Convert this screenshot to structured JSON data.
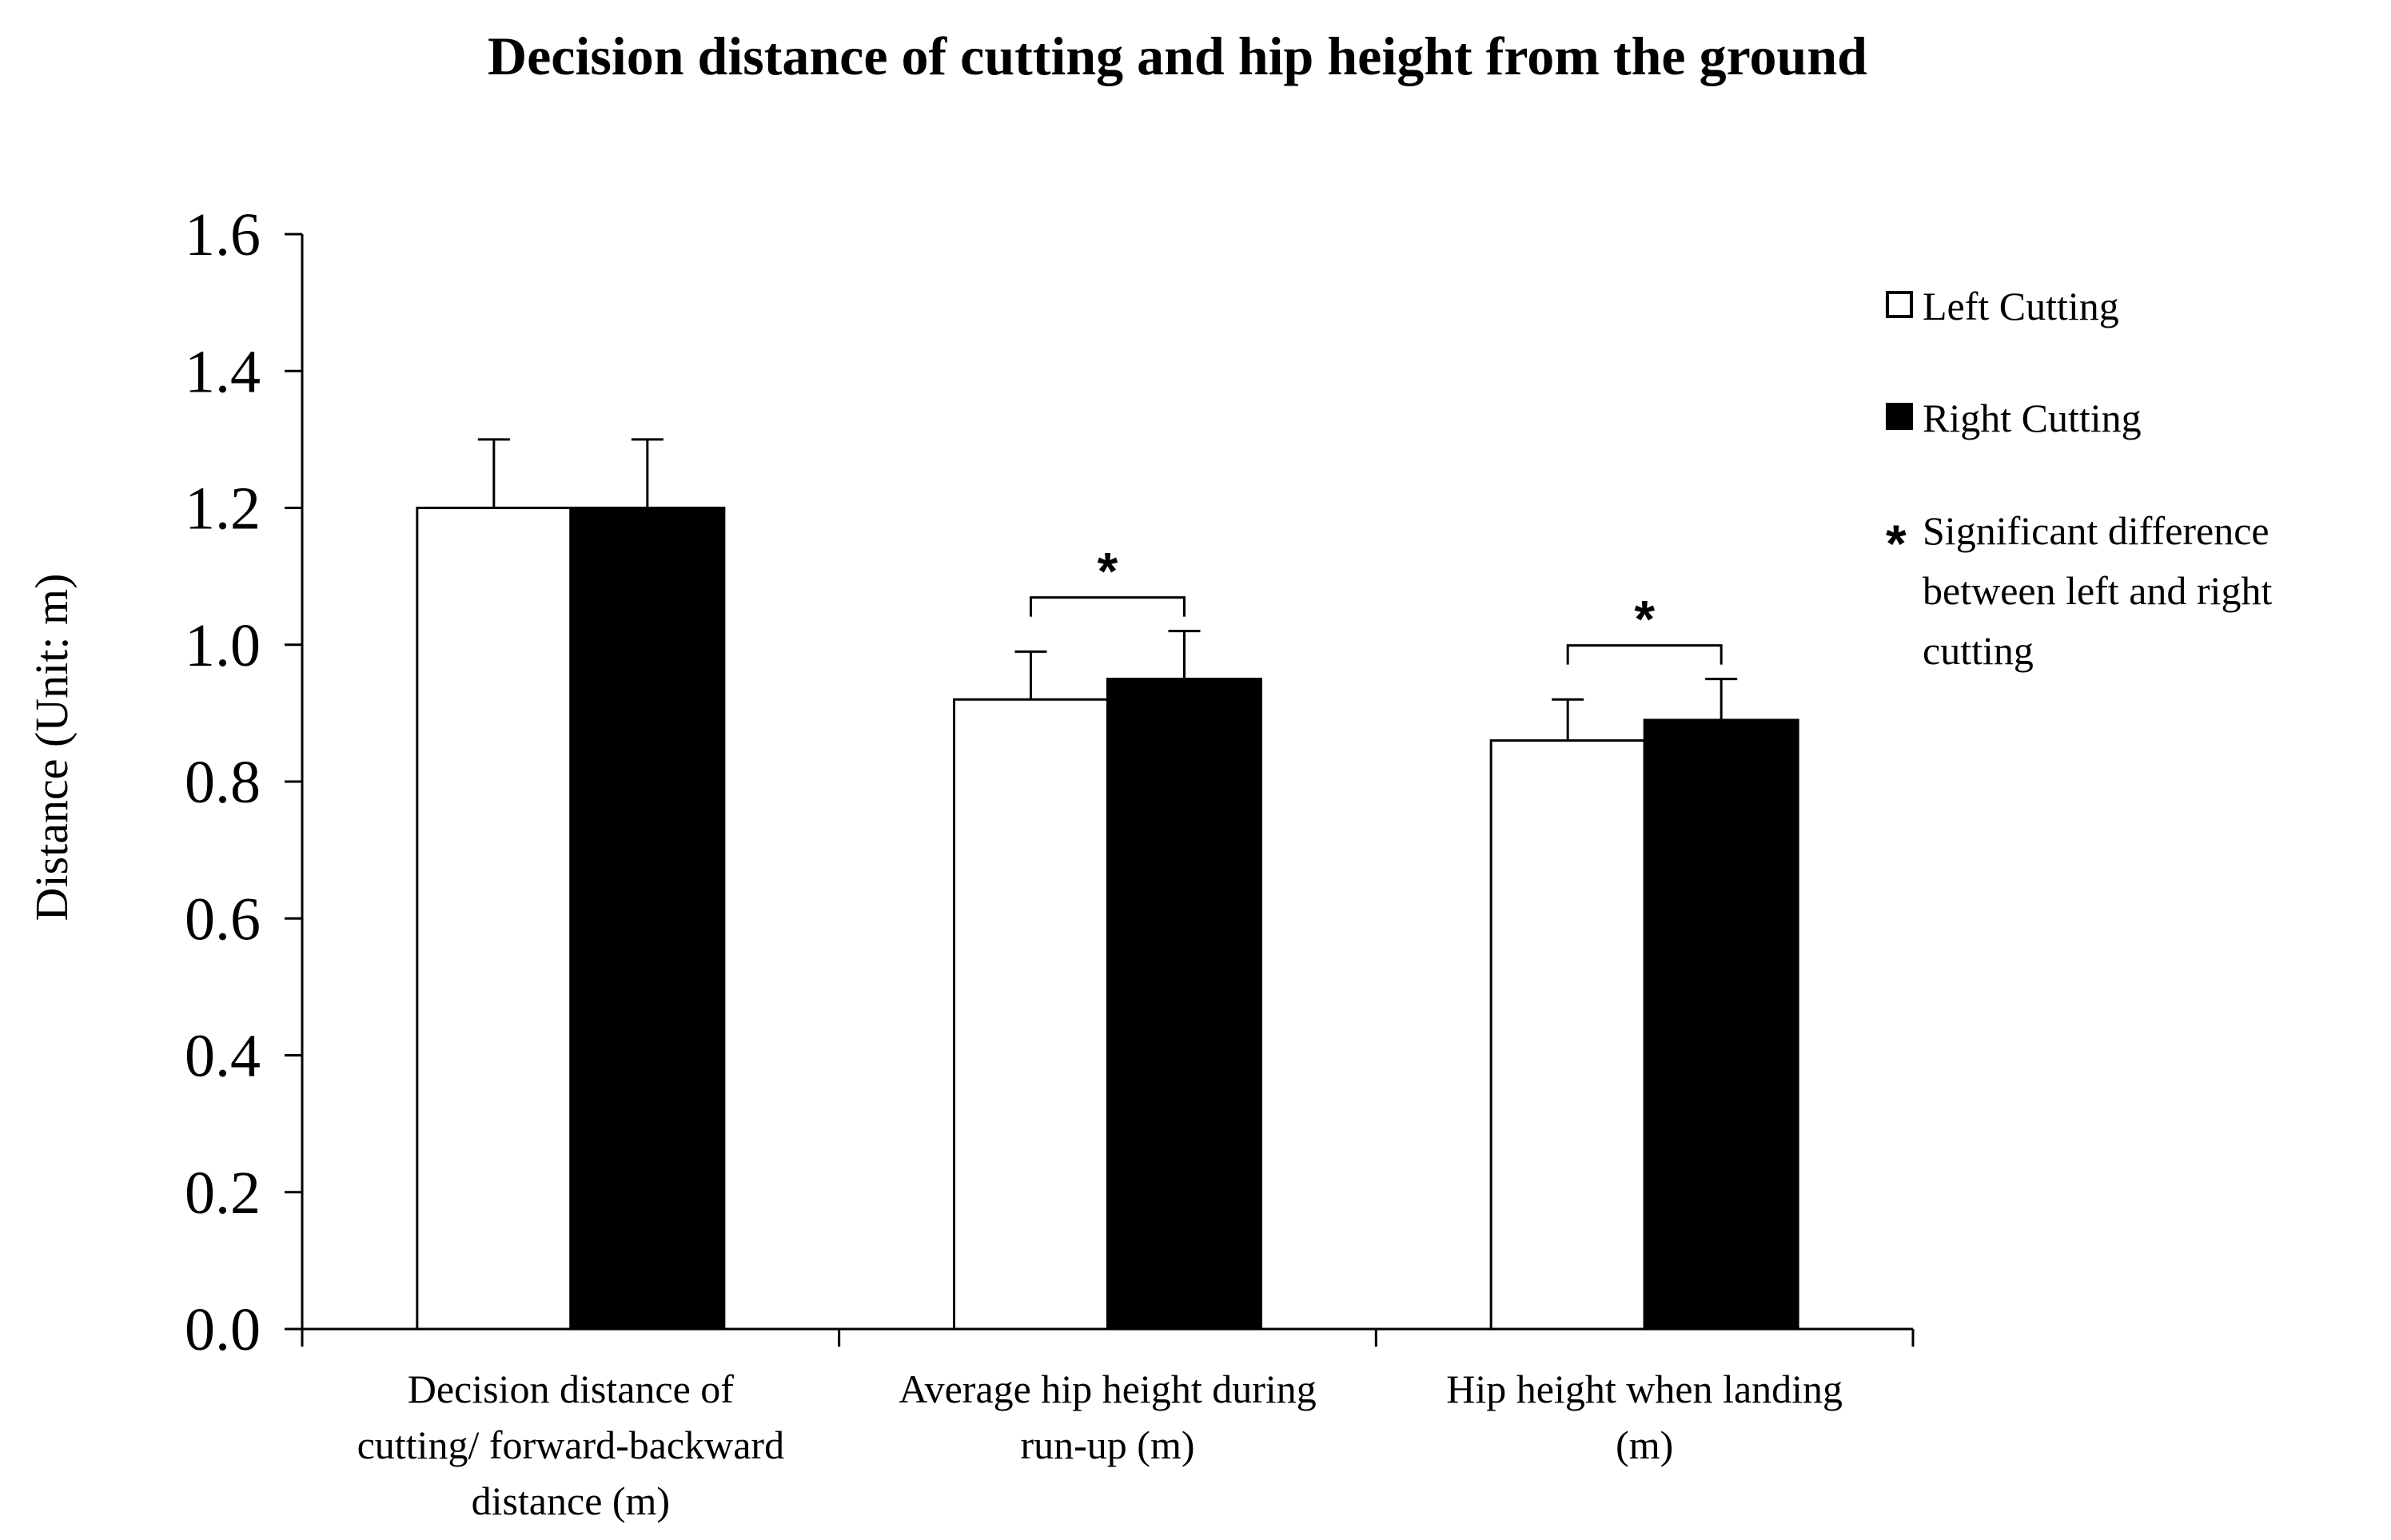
{
  "chart_data": {
    "type": "bar",
    "title": "Decision distance of cutting and hip height from the ground",
    "xlabel": "",
    "ylabel": "Distance (Unit: m)",
    "ylim": [
      0,
      1.6
    ],
    "yticks": [
      "0.0",
      "0.2",
      "0.4",
      "0.6",
      "0.8",
      "1.0",
      "1.2",
      "1.4",
      "1.6"
    ],
    "categories": [
      [
        "Decision distance of",
        "cutting/ forward-backward",
        "distance  (m)"
      ],
      [
        "Average hip height during",
        "run-up (m)"
      ],
      [
        "Hip height when landing",
        "(m)"
      ]
    ],
    "series": [
      {
        "name": "Left Cutting",
        "color": "#ffffff",
        "values": [
          1.2,
          0.92,
          0.86
        ],
        "errors": [
          0.1,
          0.07,
          0.06
        ]
      },
      {
        "name": "Right Cutting",
        "color": "#000000",
        "values": [
          1.2,
          0.95,
          0.89
        ],
        "errors": [
          0.1,
          0.07,
          0.06
        ]
      }
    ],
    "significance": [
      {
        "category_index": 1,
        "marker": "*"
      },
      {
        "category_index": 2,
        "marker": "*"
      }
    ],
    "legend": {
      "position": "right",
      "items": [
        {
          "symbol": "open-square",
          "label": "Left Cutting"
        },
        {
          "symbol": "filled-square",
          "label": "Right Cutting"
        },
        {
          "symbol": "*",
          "label_lines": [
            "Significant  difference",
            "between left and right",
            "cutting"
          ]
        }
      ]
    },
    "grid": false
  }
}
